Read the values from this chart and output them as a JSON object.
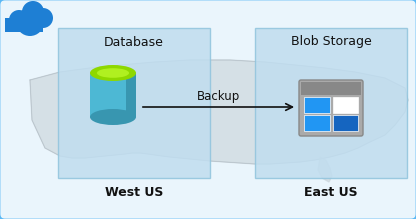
{
  "bg_color": "#dff0f8",
  "outer_box_edge": "#5bb8f5",
  "outer_box_face": "#eaf5fc",
  "map_fill": "#c8d2d8",
  "map_edge": "#b5c0c8",
  "west_box_face": "#c0ddef",
  "west_box_edge": "#90c4dd",
  "east_box_face": "#c0ddef",
  "east_box_edge": "#90c4dd",
  "db_body": "#4db8d4",
  "db_body_dark": "#3896b0",
  "db_body_light": "#6ecde0",
  "db_top": "#8ed800",
  "db_top_light": "#b0f020",
  "db_top_dark": "#6aa800",
  "blob_frame": "#888888",
  "blob_frame_dark": "#666666",
  "blob_frame_light": "#aaaaaa",
  "blob_blue1": "#2196f3",
  "blob_blue2": "#1565c0",
  "blob_white": "#ffffff",
  "arrow_color": "#111111",
  "text_dark": "#111111",
  "cloud_blue": "#1e7fd4",
  "title_db": "Database",
  "title_blob": "Blob Storage",
  "label_west": "West US",
  "label_east": "East US",
  "label_backup": "Backup",
  "figsize": [
    4.16,
    2.19
  ],
  "dpi": 100
}
